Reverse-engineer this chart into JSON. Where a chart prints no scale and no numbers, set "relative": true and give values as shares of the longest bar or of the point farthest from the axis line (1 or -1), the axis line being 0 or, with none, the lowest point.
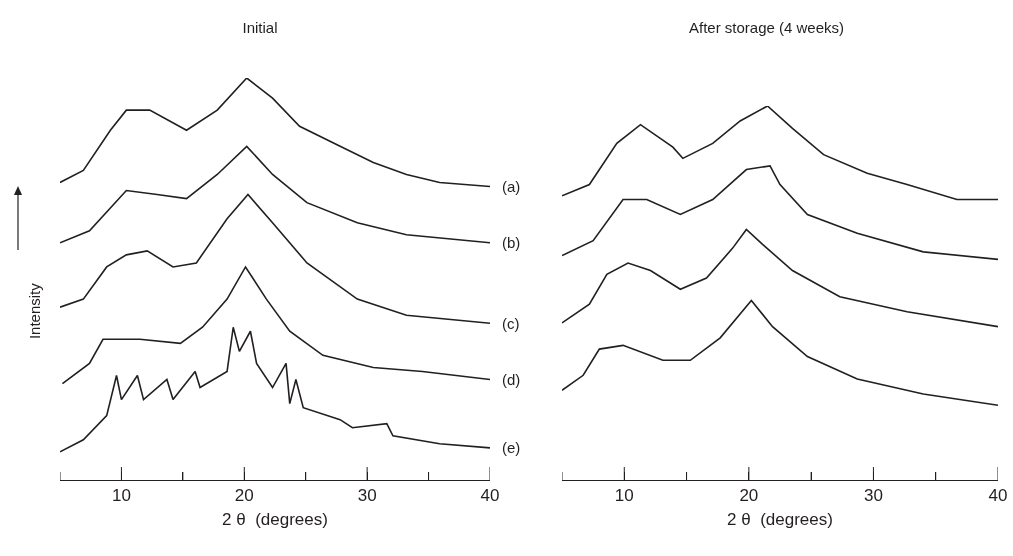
{
  "chart_data": [
    {
      "type": "line",
      "title": "Initial",
      "xlabel": "2 θ  (degrees)",
      "ylabel": "Intensity",
      "relative": true,
      "xlim": [
        5,
        40
      ],
      "xticks": [
        {
          "value": 5,
          "label": null
        },
        10,
        {
          "value": 15,
          "label": null
        },
        20,
        {
          "value": 25,
          "label": null
        },
        30,
        {
          "value": 35,
          "label": null
        },
        40
      ],
      "grid": false,
      "legend": false,
      "marker": "none",
      "line_style": "solid",
      "tick_labels": "x",
      "series": [
        {
          "name": "(a)",
          "color": "#231f20",
          "x": [
            5,
            6.9,
            9.1,
            10.4,
            12.3,
            15.3,
            17.8,
            20.2,
            22.3,
            24.5,
            27.8,
            30.5,
            33.2,
            35.9,
            40
          ],
          "values": [
            0.74,
            0.77,
            0.87,
            0.92,
            0.92,
            0.87,
            0.92,
            1,
            0.95,
            0.88,
            0.83,
            0.79,
            0.76,
            0.74,
            0.73
          ]
        },
        {
          "name": "(b)",
          "color": "#231f20",
          "x": [
            5,
            7.4,
            10.4,
            12.9,
            15.3,
            17.8,
            20.2,
            22.3,
            25.1,
            29.2,
            33.2,
            40
          ],
          "values": [
            0.59,
            0.62,
            0.72,
            0.71,
            0.7,
            0.76,
            0.83,
            0.76,
            0.69,
            0.64,
            0.61,
            0.59
          ]
        },
        {
          "name": "(c)",
          "color": "#231f20",
          "x": [
            5,
            6.9,
            8.8,
            10.4,
            12.1,
            14.2,
            16.1,
            18.6,
            20.3,
            22.3,
            25.1,
            29.2,
            33.2,
            40
          ],
          "values": [
            0.43,
            0.45,
            0.53,
            0.56,
            0.57,
            0.53,
            0.54,
            0.65,
            0.71,
            0.64,
            0.54,
            0.45,
            0.41,
            0.39
          ]
        },
        {
          "name": "(d)",
          "color": "#231f20",
          "x": [
            5.2,
            7.4,
            8.5,
            11.5,
            14.8,
            16.6,
            18.6,
            20.1,
            21.8,
            23.7,
            26.4,
            30.5,
            34.5,
            40
          ],
          "values": [
            0.24,
            0.29,
            0.35,
            0.35,
            0.34,
            0.38,
            0.45,
            0.53,
            0.45,
            0.37,
            0.31,
            0.28,
            0.27,
            0.25
          ]
        },
        {
          "name": "(e)",
          "color": "#231f20",
          "x": [
            5,
            6.9,
            8.8,
            9.6,
            10,
            11.3,
            11.8,
            13.7,
            14.2,
            16,
            16.4,
            18.6,
            19.1,
            19.6,
            20.5,
            21,
            22.3,
            23.4,
            23.7,
            24.2,
            24.8,
            27.8,
            28.8,
            31.6,
            32.1,
            35.9,
            40
          ],
          "values": [
            0.07,
            0.1,
            0.16,
            0.26,
            0.2,
            0.26,
            0.2,
            0.25,
            0.2,
            0.27,
            0.23,
            0.27,
            0.38,
            0.32,
            0.37,
            0.29,
            0.23,
            0.29,
            0.19,
            0.25,
            0.18,
            0.15,
            0.13,
            0.14,
            0.11,
            0.09,
            0.08
          ]
        }
      ]
    },
    {
      "type": "line",
      "title": "After storage (4 weeks)",
      "xlabel": "2 θ  (degrees)",
      "relative": true,
      "xlim": [
        5,
        40
      ],
      "xticks": [
        {
          "value": 5,
          "label": null
        },
        10,
        {
          "value": 15,
          "label": null
        },
        20,
        {
          "value": 25,
          "label": null
        },
        30,
        {
          "value": 35,
          "label": null
        },
        40
      ],
      "grid": false,
      "legend": false,
      "marker": "none",
      "line_style": "solid",
      "tick_labels": "x",
      "series": [
        {
          "color": "#231f20",
          "x": [
            5,
            7.2,
            9.4,
            11.3,
            13.9,
            14.7,
            17.1,
            19.3,
            21.5,
            23.5,
            26,
            29.5,
            32.7,
            36.7,
            40
          ],
          "values": [
            0.76,
            0.79,
            0.9,
            0.95,
            0.89,
            0.86,
            0.9,
            0.96,
            1,
            0.94,
            0.87,
            0.82,
            0.79,
            0.75,
            0.75
          ]
        },
        {
          "color": "#231f20",
          "x": [
            5,
            7.5,
            9.9,
            11.8,
            14.5,
            17.1,
            19.8,
            21.7,
            22.5,
            24.7,
            28.7,
            34,
            40
          ],
          "values": [
            0.6,
            0.64,
            0.75,
            0.75,
            0.71,
            0.75,
            0.83,
            0.84,
            0.79,
            0.71,
            0.66,
            0.61,
            0.59
          ]
        },
        {
          "color": "#231f20",
          "x": [
            5,
            7.2,
            8.6,
            10.3,
            12.1,
            14.5,
            16.6,
            18.7,
            19.8,
            21.1,
            23.5,
            27.3,
            32.7,
            40
          ],
          "values": [
            0.42,
            0.47,
            0.55,
            0.58,
            0.56,
            0.51,
            0.54,
            0.62,
            0.67,
            0.63,
            0.56,
            0.49,
            0.45,
            0.41
          ]
        },
        {
          "color": "#231f20",
          "x": [
            5,
            6.7,
            8,
            9.9,
            13.1,
            15.3,
            17.7,
            20.2,
            21.9,
            24.7,
            28.7,
            34,
            40
          ],
          "values": [
            0.24,
            0.28,
            0.35,
            0.36,
            0.32,
            0.32,
            0.38,
            0.48,
            0.41,
            0.33,
            0.27,
            0.23,
            0.2
          ]
        }
      ]
    }
  ]
}
